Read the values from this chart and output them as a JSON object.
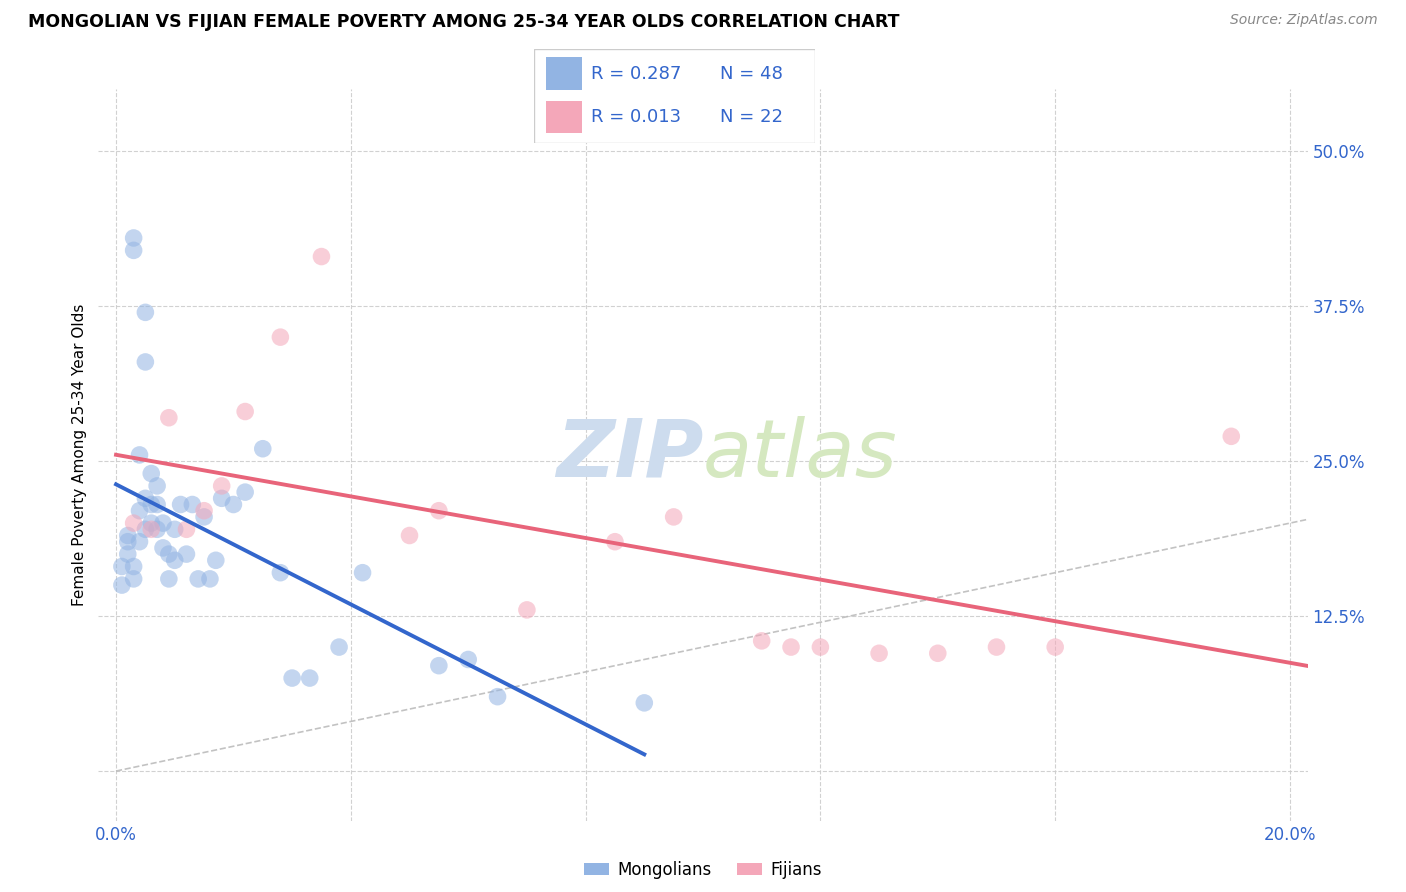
{
  "title": "MONGOLIAN VS FIJIAN FEMALE POVERTY AMONG 25-34 YEAR OLDS CORRELATION CHART",
  "source": "Source: ZipAtlas.com",
  "ylabel": "Female Poverty Among 25-34 Year Olds",
  "xlim": [
    -0.003,
    0.203
  ],
  "ylim": [
    -0.04,
    0.55
  ],
  "xticks": [
    0.0,
    0.04,
    0.08,
    0.12,
    0.16,
    0.2
  ],
  "xtick_labels": [
    "0.0%",
    "",
    "",
    "",
    "",
    "20.0%"
  ],
  "yticks": [
    0.0,
    0.125,
    0.25,
    0.375,
    0.5
  ],
  "ytick_labels": [
    "",
    "12.5%",
    "25.0%",
    "37.5%",
    "50.0%"
  ],
  "mongolian_r": 0.287,
  "mongolian_n": 48,
  "fijian_r": 0.013,
  "fijian_n": 22,
  "mongolian_color": "#92b4e3",
  "fijian_color": "#f4a7b9",
  "regression_mongolian_color": "#3366cc",
  "regression_fijian_color": "#e8647a",
  "diagonal_color": "#b8b8b8",
  "legend_color": "#3366cc",
  "watermark_zip": "ZIP",
  "watermark_atlas": "atlas",
  "watermark_color": "#d5e3f5",
  "mongolians_x": [
    0.001,
    0.001,
    0.002,
    0.002,
    0.002,
    0.003,
    0.003,
    0.003,
    0.003,
    0.004,
    0.004,
    0.004,
    0.005,
    0.005,
    0.005,
    0.005,
    0.006,
    0.006,
    0.006,
    0.007,
    0.007,
    0.007,
    0.008,
    0.008,
    0.009,
    0.009,
    0.01,
    0.01,
    0.011,
    0.012,
    0.013,
    0.014,
    0.015,
    0.016,
    0.017,
    0.018,
    0.02,
    0.022,
    0.025,
    0.028,
    0.03,
    0.033,
    0.038,
    0.042,
    0.055,
    0.06,
    0.065,
    0.09
  ],
  "mongolians_y": [
    0.165,
    0.15,
    0.19,
    0.185,
    0.175,
    0.43,
    0.42,
    0.165,
    0.155,
    0.255,
    0.21,
    0.185,
    0.37,
    0.33,
    0.22,
    0.195,
    0.24,
    0.215,
    0.2,
    0.23,
    0.215,
    0.195,
    0.2,
    0.18,
    0.175,
    0.155,
    0.195,
    0.17,
    0.215,
    0.175,
    0.215,
    0.155,
    0.205,
    0.155,
    0.17,
    0.22,
    0.215,
    0.225,
    0.26,
    0.16,
    0.075,
    0.075,
    0.1,
    0.16,
    0.085,
    0.09,
    0.06,
    0.055
  ],
  "fijians_x": [
    0.003,
    0.006,
    0.009,
    0.012,
    0.015,
    0.018,
    0.022,
    0.028,
    0.035,
    0.05,
    0.055,
    0.07,
    0.085,
    0.095,
    0.11,
    0.115,
    0.12,
    0.13,
    0.14,
    0.15,
    0.16,
    0.19
  ],
  "fijians_y": [
    0.2,
    0.195,
    0.285,
    0.195,
    0.21,
    0.23,
    0.29,
    0.35,
    0.415,
    0.19,
    0.21,
    0.13,
    0.185,
    0.205,
    0.105,
    0.1,
    0.1,
    0.095,
    0.095,
    0.1,
    0.1,
    0.27
  ]
}
